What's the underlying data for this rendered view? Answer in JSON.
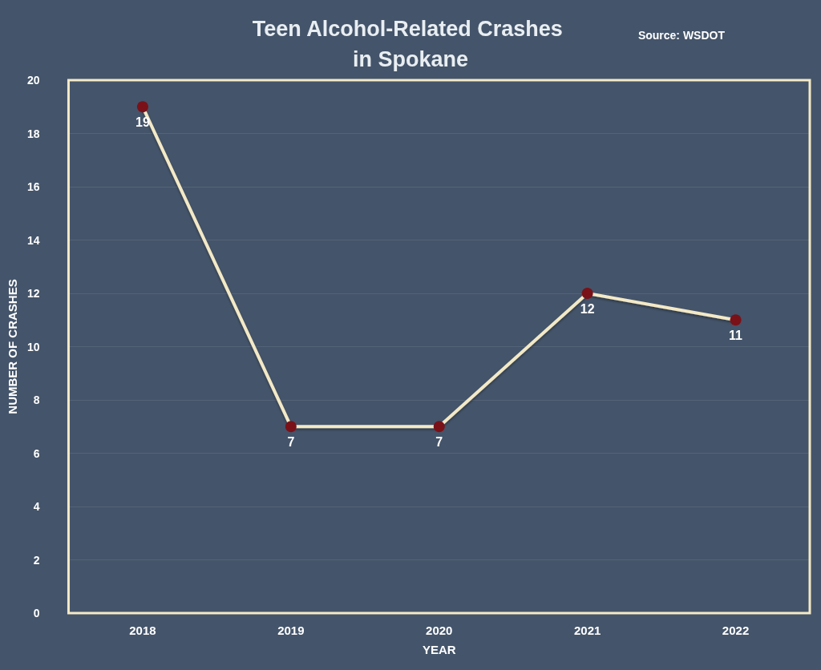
{
  "chart_data": {
    "type": "line",
    "title": "Teen Alcohol-Related Crashes in Spokane",
    "xlabel": "YEAR",
    "ylabel": "NUMBER OF CRASHES",
    "annotations": [
      "Source: WSDOT"
    ],
    "categories": [
      "2018",
      "2019",
      "2020",
      "2021",
      "2022"
    ],
    "series": [
      {
        "color": "#f3e9c6",
        "colors": [
          "#7a1118",
          "#7a1118",
          "#7a1118",
          "#7a1118",
          "#7a1118"
        ],
        "values": [
          19,
          7,
          7,
          12,
          11
        ]
      }
    ],
    "marker": "circle",
    "line_style": "solid",
    "ylim": [
      0,
      20
    ],
    "yticks": [
      0,
      2,
      4,
      6,
      8,
      10,
      12,
      14,
      16,
      18,
      20
    ],
    "grid": "y",
    "data_labels": true
  }
}
